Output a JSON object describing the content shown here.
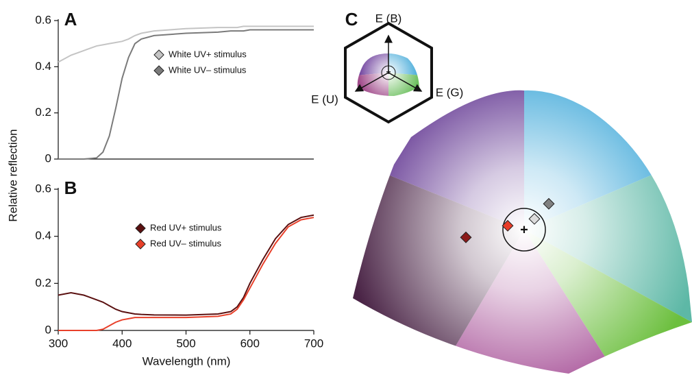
{
  "chart_data": [
    {
      "type": "line",
      "title": "A",
      "x": [
        300,
        320,
        340,
        360,
        370,
        380,
        390,
        400,
        410,
        420,
        430,
        450,
        500,
        550,
        570,
        580,
        590,
        600,
        620,
        640,
        660,
        680,
        700
      ],
      "series": [
        {
          "name": "White UV+ stimulus",
          "color": "#c4c4c4",
          "values": [
            0.42,
            0.45,
            0.47,
            0.49,
            0.495,
            0.5,
            0.505,
            0.51,
            0.52,
            0.535,
            0.545,
            0.555,
            0.565,
            0.57,
            0.57,
            0.57,
            0.575,
            0.575,
            0.575,
            0.575,
            0.575,
            0.575,
            0.575
          ]
        },
        {
          "name": "White UV– stimulus",
          "color": "#7a7a7a",
          "values": [
            0,
            0,
            0,
            0.005,
            0.03,
            0.1,
            0.22,
            0.35,
            0.44,
            0.5,
            0.52,
            0.535,
            0.545,
            0.55,
            0.555,
            0.555,
            0.555,
            0.56,
            0.56,
            0.56,
            0.56,
            0.56,
            0.56
          ]
        }
      ],
      "xlim": [
        300,
        700
      ],
      "ylim": [
        0,
        0.6
      ],
      "yticks": [
        0,
        0.2,
        0.4,
        0.6
      ]
    },
    {
      "type": "line",
      "title": "B",
      "x": [
        300,
        320,
        340,
        360,
        370,
        380,
        390,
        400,
        410,
        420,
        430,
        450,
        500,
        550,
        570,
        580,
        590,
        600,
        620,
        640,
        660,
        680,
        700
      ],
      "series": [
        {
          "name": "Red UV+ stimulus",
          "color": "#5a1010",
          "values": [
            0.15,
            0.16,
            0.15,
            0.13,
            0.12,
            0.105,
            0.09,
            0.08,
            0.075,
            0.07,
            0.068,
            0.066,
            0.065,
            0.07,
            0.08,
            0.1,
            0.14,
            0.2,
            0.3,
            0.39,
            0.45,
            0.48,
            0.49
          ]
        },
        {
          "name": "Red UV– stimulus",
          "color": "#e8402a",
          "values": [
            0,
            0,
            0,
            0,
            0.005,
            0.02,
            0.035,
            0.045,
            0.05,
            0.055,
            0.055,
            0.055,
            0.055,
            0.06,
            0.07,
            0.09,
            0.13,
            0.18,
            0.28,
            0.37,
            0.44,
            0.47,
            0.48
          ]
        }
      ],
      "xlim": [
        300,
        700
      ],
      "ylim": [
        0,
        0.6
      ],
      "yticks": [
        0,
        0.2,
        0.4,
        0.6
      ],
      "xticks": [
        300,
        400,
        500,
        600,
        700
      ]
    }
  ],
  "ylabel": "Relative reflection",
  "xlabel": "Wavelength (nm)",
  "hexagon": {
    "title": "C",
    "labels": [
      "E (B)",
      "E (U)",
      "E (G)"
    ],
    "center": "+"
  }
}
